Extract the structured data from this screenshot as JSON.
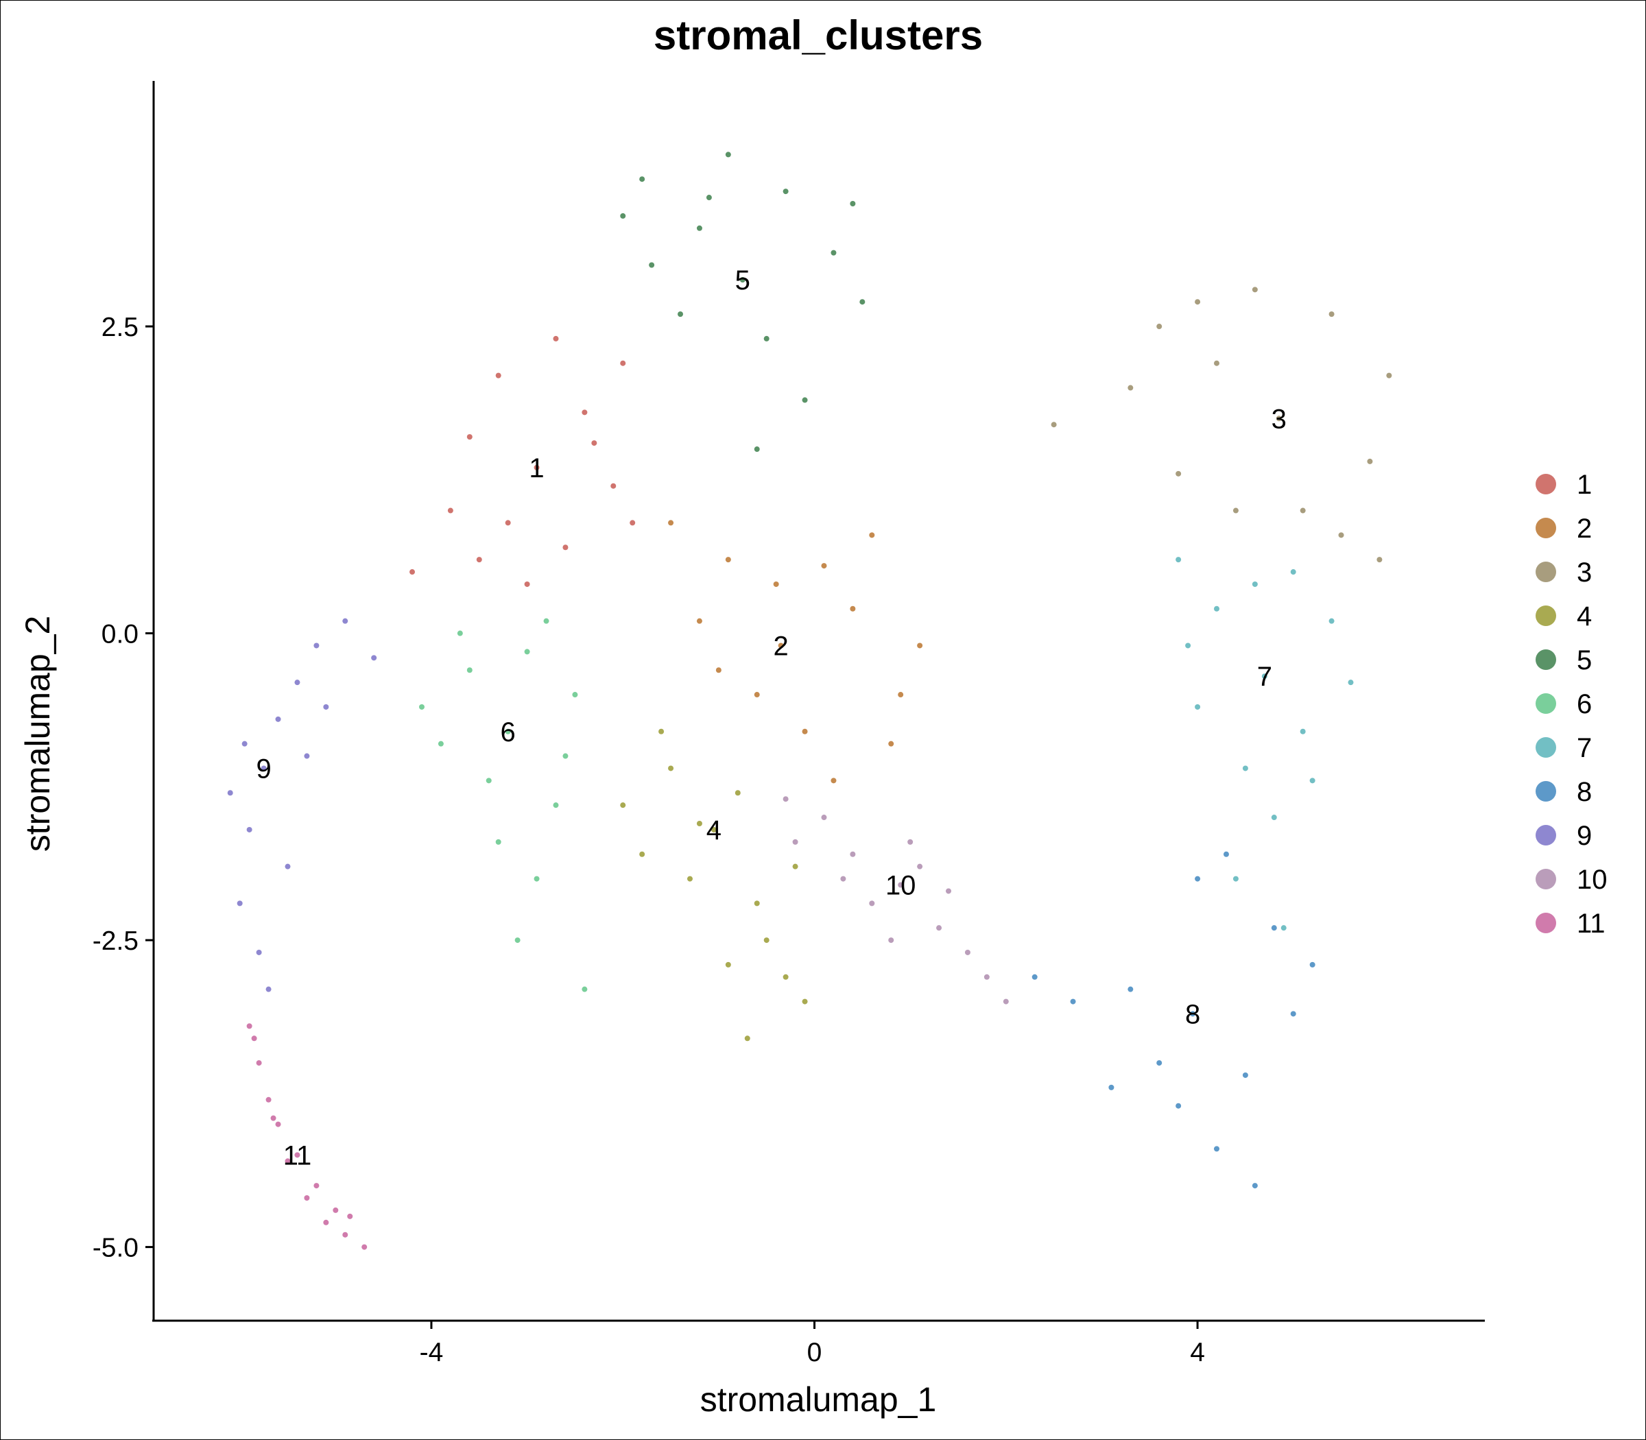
{
  "chart_data": {
    "type": "scatter",
    "title": "stromal_clusters",
    "xlabel": "stromalumap_1",
    "ylabel": "stromalumap_2",
    "xlim": [
      -6.9,
      7.0
    ],
    "ylim": [
      -5.6,
      4.5
    ],
    "x_ticks": [
      -4,
      0,
      4
    ],
    "x_tick_labels": [
      "-4",
      "0",
      "4"
    ],
    "y_ticks": [
      2.5,
      0.0,
      -2.5,
      -5.0
    ],
    "y_tick_labels": [
      "2.5",
      "0.0",
      "-2.5",
      "-5.0"
    ],
    "grid": false,
    "legend_position": "right",
    "series": [
      {
        "name": "1",
        "color": "#D0746E",
        "label_pos": [
          -2.9,
          1.35
        ],
        "points": [
          [
            -2.9,
            1.35
          ],
          [
            -3.6,
            1.6
          ],
          [
            -2.4,
            1.8
          ],
          [
            -3.2,
            0.9
          ],
          [
            -2.1,
            1.2
          ],
          [
            -3.8,
            1.0
          ],
          [
            -2.6,
            0.7
          ],
          [
            -3.3,
            2.1
          ],
          [
            -2.0,
            2.2
          ],
          [
            -4.2,
            0.5
          ],
          [
            -2.7,
            2.4
          ],
          [
            -3.0,
            0.4
          ],
          [
            -1.9,
            0.9
          ],
          [
            -3.5,
            0.6
          ],
          [
            -2.3,
            1.55
          ]
        ]
      },
      {
        "name": "2",
        "color": "#C58A4E",
        "label_pos": [
          -0.35,
          -0.1
        ],
        "points": [
          [
            -0.35,
            -0.1
          ],
          [
            0.4,
            0.2
          ],
          [
            -0.9,
            0.6
          ],
          [
            0.9,
            -0.5
          ],
          [
            -0.1,
            -0.8
          ],
          [
            -1.2,
            0.1
          ],
          [
            0.6,
            0.8
          ],
          [
            -0.6,
            -0.5
          ],
          [
            1.1,
            -0.1
          ],
          [
            -1.5,
            0.9
          ],
          [
            0.2,
            -1.2
          ],
          [
            -0.4,
            0.4
          ],
          [
            0.8,
            -0.9
          ],
          [
            -1.0,
            -0.3
          ],
          [
            0.1,
            0.55
          ]
        ]
      },
      {
        "name": "3",
        "color": "#A89D7E",
        "label_pos": [
          4.85,
          1.75
        ],
        "points": [
          [
            4.85,
            1.75
          ],
          [
            4.2,
            2.2
          ],
          [
            5.4,
            2.6
          ],
          [
            3.8,
            1.3
          ],
          [
            5.8,
            1.4
          ],
          [
            4.6,
            2.8
          ],
          [
            3.3,
            2.0
          ],
          [
            5.1,
            1.0
          ],
          [
            6.0,
            2.1
          ],
          [
            4.0,
            2.7
          ],
          [
            2.5,
            1.7
          ],
          [
            5.5,
            0.8
          ],
          [
            4.4,
            1.0
          ],
          [
            3.6,
            2.5
          ],
          [
            5.9,
            0.6
          ]
        ]
      },
      {
        "name": "4",
        "color": "#A9AA51",
        "label_pos": [
          -1.05,
          -1.6
        ],
        "points": [
          [
            -1.05,
            -1.6
          ],
          [
            -0.6,
            -2.2
          ],
          [
            -1.5,
            -1.1
          ],
          [
            -0.3,
            -2.8
          ],
          [
            -1.8,
            -1.8
          ],
          [
            -0.8,
            -1.3
          ],
          [
            -0.1,
            -3.0
          ],
          [
            -1.3,
            -2.0
          ],
          [
            -0.5,
            -2.5
          ],
          [
            -2.0,
            -1.4
          ],
          [
            -0.9,
            -2.7
          ],
          [
            -1.6,
            -0.8
          ],
          [
            -0.2,
            -1.9
          ],
          [
            -0.7,
            -3.3
          ],
          [
            -1.2,
            -1.55
          ]
        ]
      },
      {
        "name": "5",
        "color": "#5A9367",
        "label_pos": [
          -0.75,
          2.88
        ],
        "points": [
          [
            -0.75,
            2.88
          ],
          [
            -1.2,
            3.3
          ],
          [
            -0.3,
            3.6
          ],
          [
            -1.7,
            3.0
          ],
          [
            0.2,
            3.1
          ],
          [
            -0.9,
            3.9
          ],
          [
            -2.0,
            3.4
          ],
          [
            -0.5,
            2.4
          ],
          [
            0.4,
            3.5
          ],
          [
            -1.4,
            2.6
          ],
          [
            -0.1,
            1.9
          ],
          [
            -1.8,
            3.7
          ],
          [
            0.5,
            2.7
          ],
          [
            -0.6,
            1.5
          ],
          [
            -1.1,
            3.55
          ]
        ]
      },
      {
        "name": "6",
        "color": "#7ACF9B",
        "label_pos": [
          -3.2,
          -0.8
        ],
        "points": [
          [
            -3.2,
            -0.8
          ],
          [
            -3.6,
            -0.3
          ],
          [
            -2.7,
            -1.4
          ],
          [
            -3.9,
            -0.9
          ],
          [
            -2.9,
            -2.0
          ],
          [
            -3.4,
            -1.2
          ],
          [
            -2.5,
            -0.5
          ],
          [
            -3.1,
            -2.5
          ],
          [
            -4.1,
            -0.6
          ],
          [
            -2.8,
            0.1
          ],
          [
            -3.3,
            -1.7
          ],
          [
            -2.4,
            -2.9
          ],
          [
            -3.7,
            0.0
          ],
          [
            -2.6,
            -1.0
          ],
          [
            -3.0,
            -0.15
          ]
        ]
      },
      {
        "name": "7",
        "color": "#72BFC4",
        "label_pos": [
          4.7,
          -0.35
        ],
        "points": [
          [
            4.7,
            -0.35
          ],
          [
            4.2,
            0.2
          ],
          [
            5.1,
            -0.8
          ],
          [
            3.9,
            -0.1
          ],
          [
            5.4,
            0.1
          ],
          [
            4.5,
            -1.1
          ],
          [
            5.0,
            0.5
          ],
          [
            3.8,
            0.6
          ],
          [
            4.8,
            -1.5
          ],
          [
            5.6,
            -0.4
          ],
          [
            4.4,
            -2.0
          ],
          [
            5.2,
            -1.2
          ],
          [
            4.0,
            -0.6
          ],
          [
            4.9,
            -2.4
          ],
          [
            4.6,
            0.4
          ]
        ]
      },
      {
        "name": "8",
        "color": "#5D99C9",
        "label_pos": [
          3.95,
          -3.1
        ],
        "points": [
          [
            3.95,
            -3.1
          ],
          [
            4.5,
            -3.6
          ],
          [
            3.3,
            -2.9
          ],
          [
            4.8,
            -2.4
          ],
          [
            2.7,
            -3.0
          ],
          [
            4.2,
            -4.2
          ],
          [
            3.6,
            -3.5
          ],
          [
            5.0,
            -3.1
          ],
          [
            2.3,
            -2.8
          ],
          [
            4.0,
            -2.0
          ],
          [
            4.6,
            -4.5
          ],
          [
            3.1,
            -3.7
          ],
          [
            5.2,
            -2.7
          ],
          [
            4.3,
            -1.8
          ],
          [
            3.8,
            -3.85
          ]
        ]
      },
      {
        "name": "9",
        "color": "#8E87D0",
        "label_pos": [
          -5.75,
          -1.1
        ],
        "points": [
          [
            -5.75,
            -1.1
          ],
          [
            -5.9,
            -1.6
          ],
          [
            -5.6,
            -0.7
          ],
          [
            -6.0,
            -2.2
          ],
          [
            -5.4,
            -0.4
          ],
          [
            -5.8,
            -2.6
          ],
          [
            -5.2,
            -0.1
          ],
          [
            -6.1,
            -1.3
          ],
          [
            -4.9,
            0.1
          ],
          [
            -5.5,
            -1.9
          ],
          [
            -5.7,
            -2.9
          ],
          [
            -5.3,
            -1.0
          ],
          [
            -4.6,
            -0.2
          ],
          [
            -5.95,
            -0.9
          ],
          [
            -5.1,
            -0.6
          ]
        ]
      },
      {
        "name": "10",
        "color": "#BA9DBA",
        "label_pos": [
          0.9,
          -2.05
        ],
        "points": [
          [
            0.9,
            -2.05
          ],
          [
            0.4,
            -1.8
          ],
          [
            1.3,
            -2.4
          ],
          [
            0.1,
            -1.5
          ],
          [
            1.6,
            -2.6
          ],
          [
            0.6,
            -2.2
          ],
          [
            1.1,
            -1.9
          ],
          [
            -0.2,
            -1.7
          ],
          [
            1.8,
            -2.8
          ],
          [
            0.8,
            -2.5
          ],
          [
            0.3,
            -2.0
          ],
          [
            1.4,
            -2.1
          ],
          [
            2.0,
            -3.0
          ],
          [
            -0.3,
            -1.35
          ],
          [
            1.0,
            -1.7
          ]
        ]
      },
      {
        "name": "11",
        "color": "#D07BAC",
        "label_pos": [
          -5.4,
          -4.25
        ],
        "points": [
          [
            -5.4,
            -4.25
          ],
          [
            -5.8,
            -3.5
          ],
          [
            -5.6,
            -4.0
          ],
          [
            -5.2,
            -4.5
          ],
          [
            -5.9,
            -3.2
          ],
          [
            -5.0,
            -4.7
          ],
          [
            -5.7,
            -3.8
          ],
          [
            -4.9,
            -4.9
          ],
          [
            -5.5,
            -4.3
          ],
          [
            -4.7,
            -5.0
          ],
          [
            -5.3,
            -4.6
          ],
          [
            -5.85,
            -3.3
          ],
          [
            -5.1,
            -4.8
          ],
          [
            -5.65,
            -3.95
          ],
          [
            -4.85,
            -4.75
          ]
        ]
      }
    ]
  }
}
